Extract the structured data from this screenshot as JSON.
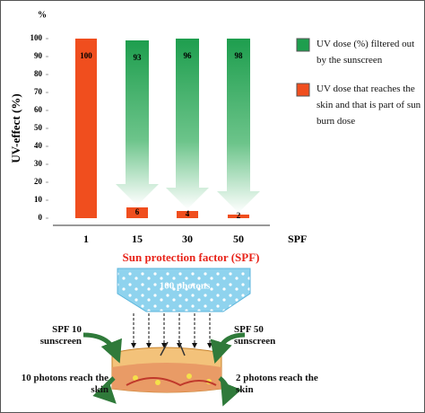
{
  "chart_data": {
    "type": "bar",
    "y_unit": "%",
    "y_label": "UV-effect (%)",
    "x_label": "Sun protection factor (SPF)",
    "x_unit": "SPF",
    "categories": [
      "1",
      "15",
      "30",
      "50"
    ],
    "series": [
      {
        "name": "UV dose (%) filtered out by the sunscreen",
        "color": "#1e9e4e",
        "values": [
          null,
          93,
          96,
          98
        ]
      },
      {
        "name": "UV dose that reaches the skin and that is part of sun burn dose",
        "color": "#f04e1e",
        "values": [
          100,
          6,
          4,
          2
        ]
      }
    ],
    "ylim": [
      0,
      100
    ],
    "yticks": [
      0,
      10,
      20,
      30,
      40,
      50,
      60,
      70,
      80,
      90,
      100
    ],
    "legend": "right"
  },
  "diagram": {
    "source": "100 photons",
    "left_filter": "SPF 10 sunscreen",
    "right_filter": "SPF 50 sunscreen",
    "left_result": "10 photons reach the skin",
    "right_result": "2 photons reach the skin"
  }
}
